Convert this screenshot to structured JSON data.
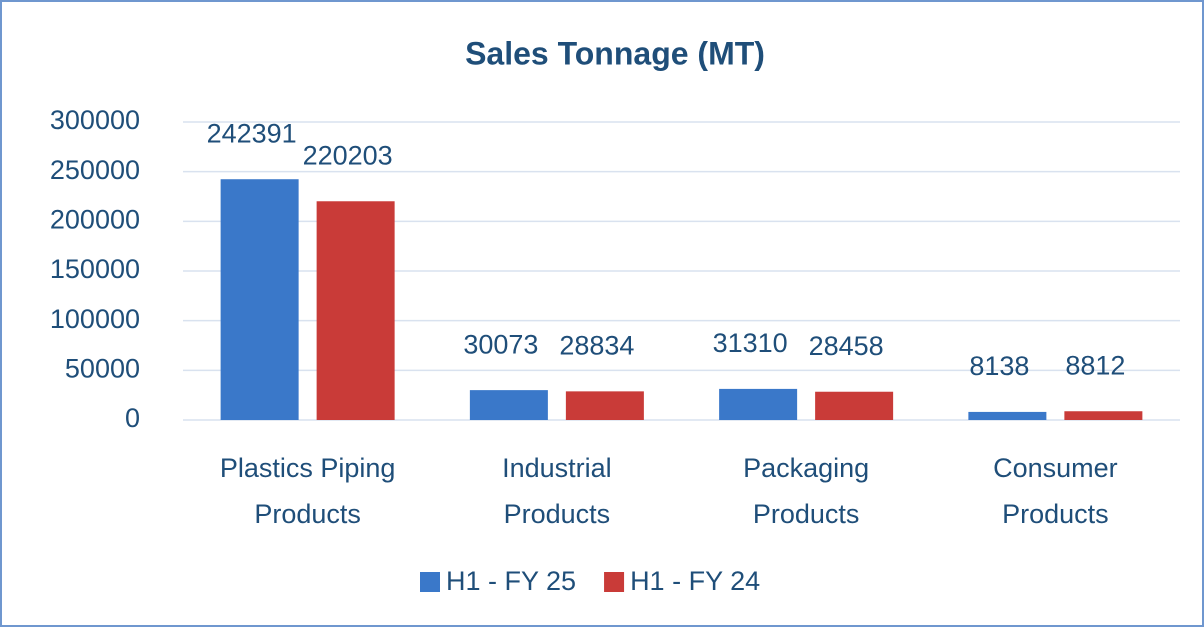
{
  "chart_data": {
    "type": "bar",
    "title": "Sales Tonnage (MT)",
    "categories": [
      "Plastics Piping Products",
      "Industrial Products",
      "Packaging Products",
      "Consumer Products"
    ],
    "series": [
      {
        "name": "H1 - FY 25",
        "color": "#3a78c9",
        "values": [
          242391,
          30073,
          31310,
          8138
        ]
      },
      {
        "name": "H1 - FY 24",
        "color": "#c93b38",
        "values": [
          220203,
          28834,
          28458,
          8812
        ]
      }
    ],
    "ylim": [
      0,
      300000
    ],
    "yticks": [
      0,
      50000,
      100000,
      150000,
      200000,
      250000,
      300000
    ],
    "grid": true,
    "legend": "bottom"
  }
}
